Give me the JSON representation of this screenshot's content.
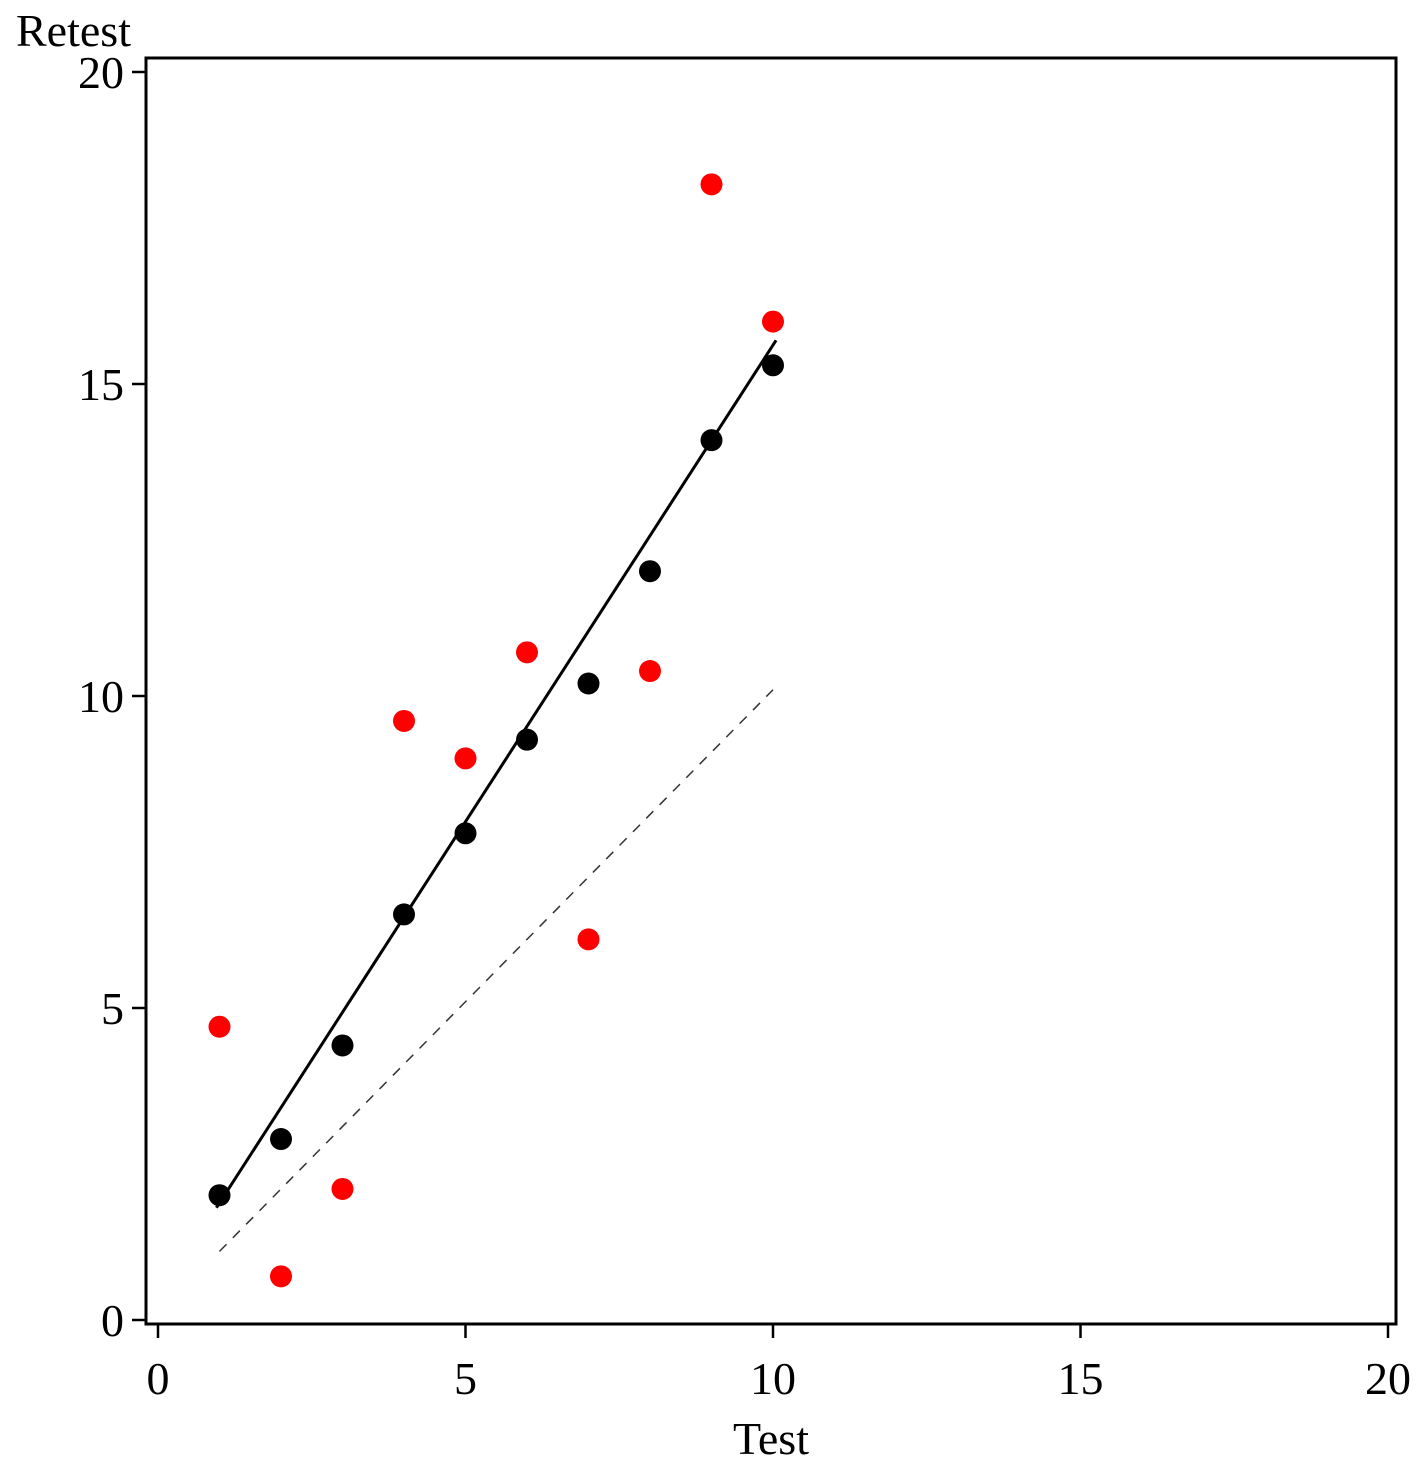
{
  "chart_data": {
    "type": "scatter",
    "title": "",
    "xlabel": "Test",
    "ylabel": "Retest",
    "xlim": [
      0,
      20
    ],
    "ylim": [
      0,
      20
    ],
    "x_ticks": [
      0,
      5,
      10,
      15,
      20
    ],
    "y_ticks": [
      0,
      5,
      10,
      15,
      20
    ],
    "grid": false,
    "legend": "none",
    "marker_radius": 11,
    "series": [
      {
        "name": "fitted-black",
        "color": "#000000",
        "marker": "filled-circle",
        "points": [
          [
            1,
            2.0
          ],
          [
            2,
            2.9
          ],
          [
            3,
            4.4
          ],
          [
            4,
            6.5
          ],
          [
            5,
            7.8
          ],
          [
            6,
            9.3
          ],
          [
            7,
            10.2
          ],
          [
            8,
            12.0
          ],
          [
            9,
            14.1
          ],
          [
            10,
            15.3
          ]
        ]
      },
      {
        "name": "observed-red",
        "color": "#ff0000",
        "marker": "filled-circle",
        "points": [
          [
            1,
            4.7
          ],
          [
            2,
            0.7
          ],
          [
            3,
            2.1
          ],
          [
            4,
            9.6
          ],
          [
            5,
            9.0
          ],
          [
            6,
            10.7
          ],
          [
            7,
            6.1
          ],
          [
            8,
            10.4
          ],
          [
            9,
            18.2
          ],
          [
            10,
            16.0
          ]
        ]
      }
    ],
    "lines": [
      {
        "name": "regression-line",
        "style": "solid",
        "color": "#000000",
        "width": 3,
        "from": [
          0.95,
          1.8
        ],
        "to": [
          10.05,
          15.7
        ]
      },
      {
        "name": "identity-line",
        "style": "dashed",
        "color": "#333333",
        "width": 1.5,
        "from": [
          1.0,
          1.1
        ],
        "to": [
          10.0,
          10.1
        ]
      }
    ]
  }
}
